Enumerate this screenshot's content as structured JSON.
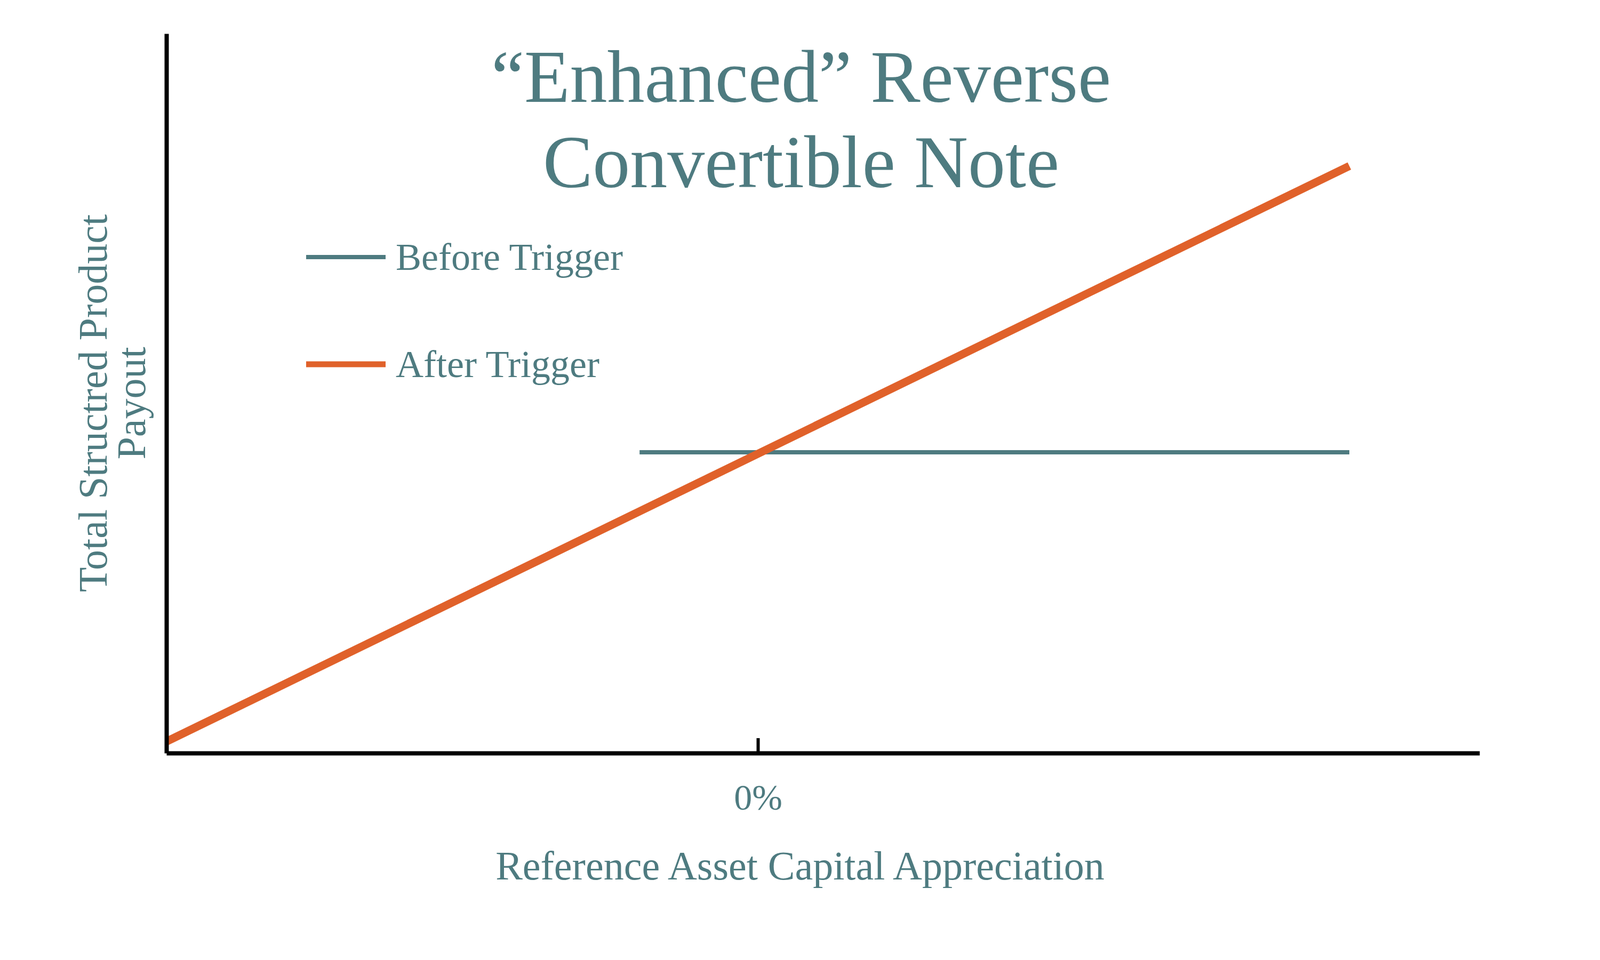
{
  "chart_data": {
    "type": "line",
    "title": [
      "“Enhanced” Reverse",
      "Convertible Note"
    ],
    "x_label": "Reference Asset Capital Appreciation",
    "y_label": [
      "Total Structred Product",
      "Payout"
    ],
    "xlim": [
      -100,
      122
    ],
    "xticks": [
      {
        "value": 0,
        "label": "0%"
      }
    ],
    "ylim": [
      0,
      100
    ],
    "yticks": [],
    "tick_labels": "x",
    "legend": "upper left",
    "series": [
      {
        "name": "Before Trigger",
        "color": "#4e7b80",
        "x": [
          -20,
          100
        ],
        "values": [
          41.8,
          41.8
        ]
      },
      {
        "name": "After Trigger",
        "color": "#e0612a",
        "x": [
          -100,
          100
        ],
        "values": [
          1.6,
          81.6
        ]
      }
    ]
  }
}
